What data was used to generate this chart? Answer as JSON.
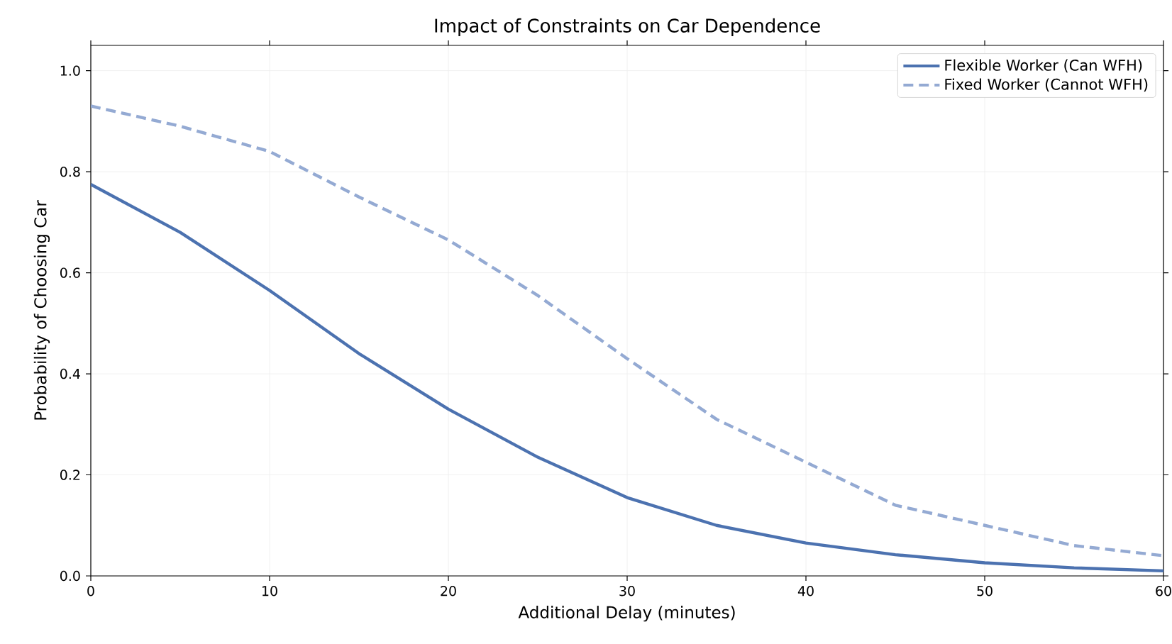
{
  "chart_data": {
    "type": "line",
    "title": "Impact of Constraints on Car Dependence",
    "xlabel": "Additional Delay (minutes)",
    "ylabel": "Probability of Choosing Car",
    "x": [
      0,
      5,
      10,
      15,
      20,
      25,
      30,
      35,
      40,
      45,
      50,
      55,
      60
    ],
    "series": [
      {
        "name": "Flexible Worker (Can WFH)",
        "color": "#4c72b0",
        "line_style": "solid",
        "values": [
          0.775,
          0.68,
          0.565,
          0.44,
          0.33,
          0.235,
          0.155,
          0.1,
          0.065,
          0.042,
          0.026,
          0.016,
          0.01
        ]
      },
      {
        "name": "Fixed Worker (Cannot WFH)",
        "color": "#94aad3",
        "line_style": "dashed",
        "values": [
          0.93,
          0.89,
          0.84,
          0.75,
          0.665,
          0.555,
          0.43,
          0.31,
          0.225,
          0.14,
          0.1,
          0.06,
          0.04
        ]
      }
    ],
    "xlim": [
      0,
      60
    ],
    "xticks": [
      0,
      10,
      20,
      30,
      40,
      50,
      60
    ],
    "ylim": [
      0,
      1.05
    ],
    "yticks": [
      {
        "value": 0,
        "label": "0.0"
      },
      {
        "value": 0.2,
        "label": "0.2"
      },
      {
        "value": 0.4,
        "label": "0.4"
      },
      {
        "value": 0.6,
        "label": "0.6"
      },
      {
        "value": 0.8,
        "label": "0.8"
      },
      {
        "value": 1.0,
        "label": "1.0"
      }
    ],
    "grid": true,
    "legend": "top right",
    "marker": "none"
  }
}
